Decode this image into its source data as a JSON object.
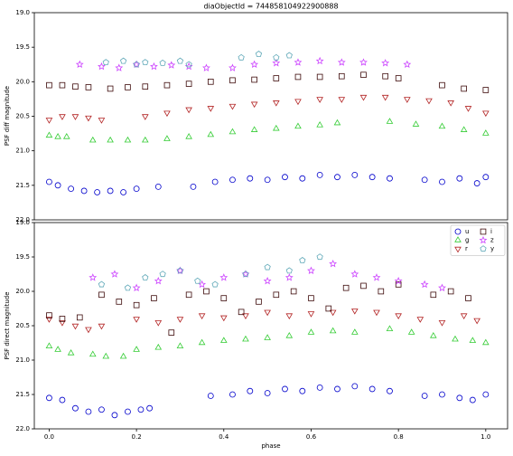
{
  "chart_data": [
    {
      "type": "scatter",
      "title": "diaObjectId = 744858104922900888",
      "y_label": "PSF diff magnitude",
      "xlim": [
        -0.034,
        1.05
      ],
      "ylim": [
        19.0,
        22.0
      ],
      "invert_y": true,
      "yticks": [
        {
          "value": 19.0,
          "label": "19.0"
        },
        19.5,
        {
          "value": 20.0,
          "label": "20.0"
        },
        20.5,
        {
          "value": 21.0,
          "label": "21.0"
        },
        21.5,
        {
          "value": 22.0,
          "label": "22.0"
        }
      ],
      "series": [
        {
          "color": "#0000cc",
          "marker": "circle",
          "x": [
            0.0,
            0.02,
            0.05,
            0.08,
            0.11,
            0.14,
            0.17,
            0.2,
            0.25,
            0.33,
            0.38,
            0.42,
            0.46,
            0.5,
            0.54,
            0.58,
            0.62,
            0.66,
            0.7,
            0.74,
            0.78,
            0.86,
            0.9,
            0.94,
            0.98,
            1.0
          ],
          "values": [
            21.45,
            21.5,
            21.55,
            21.58,
            21.6,
            21.58,
            21.6,
            21.55,
            21.52,
            21.52,
            21.45,
            21.42,
            21.4,
            21.42,
            21.38,
            21.4,
            21.35,
            21.38,
            21.35,
            21.38,
            21.4,
            21.42,
            21.45,
            21.4,
            21.47,
            21.38
          ]
        },
        {
          "color": "#33cc33",
          "marker": "triangle-up",
          "x": [
            0.0,
            0.02,
            0.04,
            0.1,
            0.14,
            0.18,
            0.22,
            0.27,
            0.32,
            0.37,
            0.42,
            0.47,
            0.52,
            0.57,
            0.62,
            0.66,
            0.78,
            0.84,
            0.9,
            0.95,
            1.0
          ],
          "values": [
            20.78,
            20.8,
            20.8,
            20.85,
            20.85,
            20.85,
            20.85,
            20.83,
            20.8,
            20.77,
            20.73,
            20.7,
            20.68,
            20.65,
            20.63,
            20.6,
            20.58,
            20.62,
            20.65,
            20.7,
            20.75
          ]
        },
        {
          "color": "#b22222",
          "marker": "triangle-down",
          "x": [
            0.0,
            0.03,
            0.06,
            0.09,
            0.12,
            0.22,
            0.27,
            0.32,
            0.37,
            0.42,
            0.47,
            0.52,
            0.57,
            0.62,
            0.67,
            0.72,
            0.77,
            0.82,
            0.87,
            0.92,
            0.96,
            1.0
          ],
          "values": [
            20.55,
            20.5,
            20.5,
            20.52,
            20.55,
            20.5,
            20.45,
            20.4,
            20.38,
            20.35,
            20.32,
            20.3,
            20.28,
            20.25,
            20.25,
            20.22,
            20.22,
            20.25,
            20.27,
            20.3,
            20.38,
            20.45
          ]
        },
        {
          "color": "#3d0a0a",
          "marker": "square",
          "x": [
            0.0,
            0.03,
            0.06,
            0.09,
            0.14,
            0.18,
            0.22,
            0.27,
            0.32,
            0.37,
            0.42,
            0.47,
            0.52,
            0.57,
            0.62,
            0.67,
            0.72,
            0.77,
            0.8,
            0.9,
            0.95,
            1.0
          ],
          "values": [
            20.05,
            20.05,
            20.07,
            20.08,
            20.1,
            20.08,
            20.07,
            20.05,
            20.03,
            20.0,
            19.98,
            19.97,
            19.95,
            19.93,
            19.93,
            19.92,
            19.9,
            19.92,
            19.95,
            20.05,
            20.1,
            20.12
          ]
        },
        {
          "color": "#cc44ff",
          "marker": "star",
          "x": [
            0.07,
            0.12,
            0.16,
            0.2,
            0.24,
            0.28,
            0.32,
            0.36,
            0.42,
            0.47,
            0.52,
            0.57,
            0.62,
            0.67,
            0.72,
            0.77,
            0.82
          ],
          "values": [
            19.75,
            19.78,
            19.8,
            19.75,
            19.78,
            19.76,
            19.78,
            19.8,
            19.8,
            19.75,
            19.73,
            19.72,
            19.7,
            19.72,
            19.72,
            19.73,
            19.75
          ]
        },
        {
          "color": "#5fa8b8",
          "marker": "pentagon",
          "x": [
            0.13,
            0.17,
            0.2,
            0.22,
            0.26,
            0.3,
            0.32,
            0.44,
            0.48,
            0.52,
            0.55
          ],
          "values": [
            19.72,
            19.7,
            19.75,
            19.72,
            19.73,
            19.7,
            19.75,
            19.65,
            19.6,
            19.65,
            19.62
          ]
        }
      ]
    },
    {
      "type": "scatter",
      "x_label": "phase",
      "y_label": "PSF direct magnitude",
      "legend": "upper right",
      "xlim": [
        -0.034,
        1.05
      ],
      "ylim": [
        19.0,
        22.0
      ],
      "invert_y": true,
      "xticks": [
        {
          "value": 0.0,
          "label": "0.0"
        },
        0.2,
        0.4,
        0.6,
        0.8,
        {
          "value": 1.0,
          "label": "1.0"
        }
      ],
      "yticks": [
        {
          "value": 19.0,
          "label": "19.0"
        },
        19.5,
        {
          "value": 20.0,
          "label": "20.0"
        },
        20.5,
        {
          "value": 21.0,
          "label": "21.0"
        },
        21.5,
        {
          "value": 22.0,
          "label": "22.0"
        }
      ],
      "series": [
        {
          "name": "u",
          "color": "#0000cc",
          "marker": "circle",
          "x": [
            0.0,
            0.03,
            0.06,
            0.09,
            0.12,
            0.15,
            0.18,
            0.21,
            0.23,
            0.37,
            0.42,
            0.46,
            0.5,
            0.54,
            0.58,
            0.62,
            0.66,
            0.7,
            0.74,
            0.78,
            0.86,
            0.9,
            0.94,
            0.97,
            1.0
          ],
          "values": [
            21.55,
            21.58,
            21.7,
            21.75,
            21.72,
            21.8,
            21.75,
            21.72,
            21.7,
            21.52,
            21.5,
            21.45,
            21.48,
            21.42,
            21.45,
            21.4,
            21.42,
            21.38,
            21.42,
            21.45,
            21.52,
            21.5,
            21.55,
            21.58,
            21.5
          ]
        },
        {
          "name": "g",
          "color": "#33cc33",
          "marker": "triangle-up",
          "x": [
            0.0,
            0.02,
            0.05,
            0.1,
            0.13,
            0.17,
            0.2,
            0.25,
            0.3,
            0.35,
            0.4,
            0.45,
            0.5,
            0.55,
            0.6,
            0.65,
            0.7,
            0.78,
            0.83,
            0.88,
            0.93,
            0.97,
            1.0
          ],
          "values": [
            20.8,
            20.85,
            20.9,
            20.92,
            20.95,
            20.95,
            20.85,
            20.82,
            20.8,
            20.75,
            20.72,
            20.7,
            20.68,
            20.65,
            20.6,
            20.58,
            20.6,
            20.55,
            20.6,
            20.65,
            20.7,
            20.72,
            20.75
          ]
        },
        {
          "name": "r",
          "color": "#b22222",
          "marker": "triangle-down",
          "x": [
            0.0,
            0.03,
            0.06,
            0.09,
            0.12,
            0.2,
            0.25,
            0.3,
            0.35,
            0.4,
            0.45,
            0.5,
            0.55,
            0.6,
            0.65,
            0.7,
            0.75,
            0.8,
            0.85,
            0.9,
            0.95,
            0.98
          ],
          "values": [
            20.4,
            20.45,
            20.5,
            20.55,
            20.5,
            20.4,
            20.45,
            20.4,
            20.35,
            20.38,
            20.35,
            20.3,
            20.35,
            20.32,
            20.3,
            20.28,
            20.3,
            20.35,
            20.4,
            20.45,
            20.35,
            20.42
          ]
        },
        {
          "name": "i",
          "color": "#3d0a0a",
          "marker": "square",
          "x": [
            0.0,
            0.03,
            0.07,
            0.12,
            0.16,
            0.2,
            0.24,
            0.28,
            0.32,
            0.36,
            0.4,
            0.44,
            0.48,
            0.52,
            0.56,
            0.6,
            0.64,
            0.68,
            0.72,
            0.76,
            0.8,
            0.88,
            0.92,
            0.96
          ],
          "values": [
            20.35,
            20.4,
            20.38,
            20.05,
            20.15,
            20.2,
            20.1,
            20.6,
            20.05,
            20.0,
            20.1,
            20.3,
            20.15,
            20.05,
            20.0,
            20.1,
            20.25,
            19.95,
            19.92,
            20.0,
            19.9,
            20.05,
            20.0,
            20.1
          ]
        },
        {
          "name": "z",
          "color": "#cc44ff",
          "marker": "star",
          "x": [
            0.1,
            0.15,
            0.2,
            0.25,
            0.3,
            0.35,
            0.4,
            0.45,
            0.5,
            0.55,
            0.6,
            0.65,
            0.7,
            0.75,
            0.8,
            0.86,
            0.9
          ],
          "values": [
            19.8,
            19.75,
            19.95,
            19.85,
            19.7,
            19.9,
            19.8,
            19.75,
            19.85,
            19.8,
            19.7,
            19.6,
            19.75,
            19.8,
            19.85,
            19.9,
            19.95
          ]
        },
        {
          "name": "y",
          "color": "#5fa8b8",
          "marker": "pentagon",
          "x": [
            0.12,
            0.18,
            0.22,
            0.26,
            0.3,
            0.34,
            0.38,
            0.45,
            0.5,
            0.55,
            0.58,
            0.62
          ],
          "values": [
            19.9,
            19.95,
            19.8,
            19.75,
            19.7,
            19.85,
            19.9,
            19.75,
            19.65,
            19.7,
            19.55,
            19.5
          ]
        }
      ]
    }
  ]
}
